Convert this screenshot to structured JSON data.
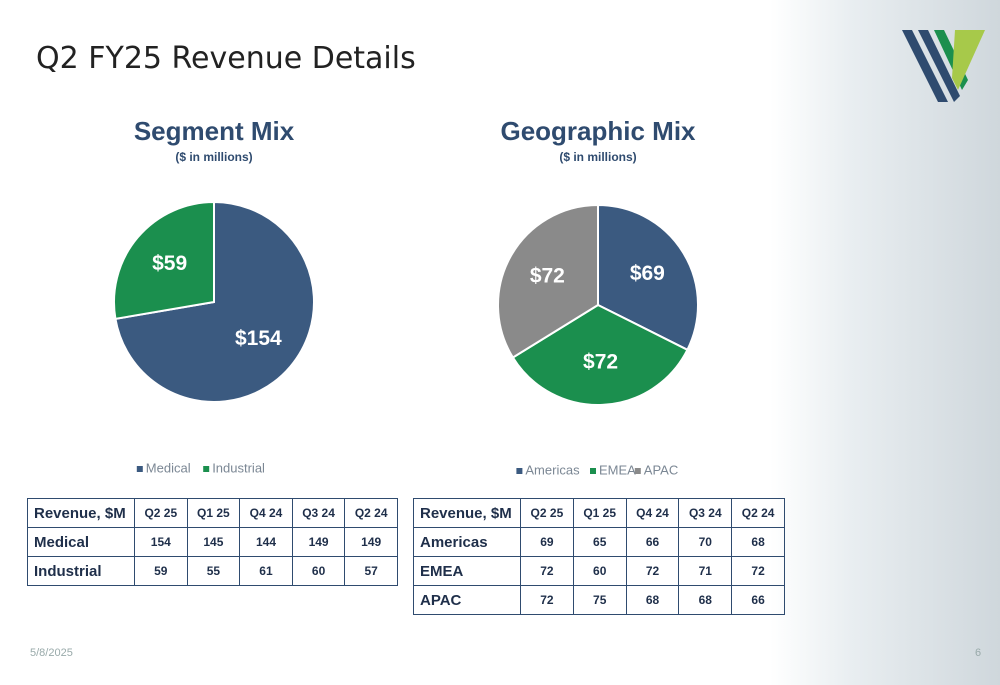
{
  "title": "Q2 FY25 Revenue Details",
  "chart_data": [
    {
      "type": "pie",
      "title": "Segment Mix",
      "subtitle": "($ in millions)",
      "categories": [
        "Medical",
        "Industrial"
      ],
      "values": [
        154,
        59
      ],
      "value_labels": [
        "$154",
        "$59"
      ],
      "colors": [
        "#3b5a80",
        "#1b8f4e"
      ]
    },
    {
      "type": "pie",
      "title": "Geographic Mix",
      "subtitle": "($ in millions)",
      "categories": [
        "Americas",
        "EMEA",
        "APAC"
      ],
      "values": [
        69,
        72,
        72
      ],
      "value_labels": [
        "$69",
        "$72",
        "$72"
      ],
      "colors": [
        "#3b5a80",
        "#1b8f4e",
        "#8a8a8a"
      ]
    }
  ],
  "tables": [
    {
      "header": [
        "Revenue, $M",
        "Q2 25",
        "Q1 25",
        "Q4 24",
        "Q3 24",
        "Q2 24"
      ],
      "rows": [
        [
          "Medical",
          154,
          145,
          144,
          149,
          149
        ],
        [
          "Industrial",
          59,
          55,
          61,
          60,
          57
        ]
      ]
    },
    {
      "header": [
        "Revenue, $M",
        "Q2 25",
        "Q1 25",
        "Q4 24",
        "Q3 24",
        "Q2 24"
      ],
      "rows": [
        [
          "Americas",
          69,
          65,
          66,
          70,
          68
        ],
        [
          "EMEA",
          72,
          60,
          72,
          71,
          72
        ],
        [
          "APAC",
          72,
          75,
          68,
          68,
          66
        ]
      ]
    }
  ],
  "footer": {
    "date": "5/8/2025",
    "page": "6"
  }
}
